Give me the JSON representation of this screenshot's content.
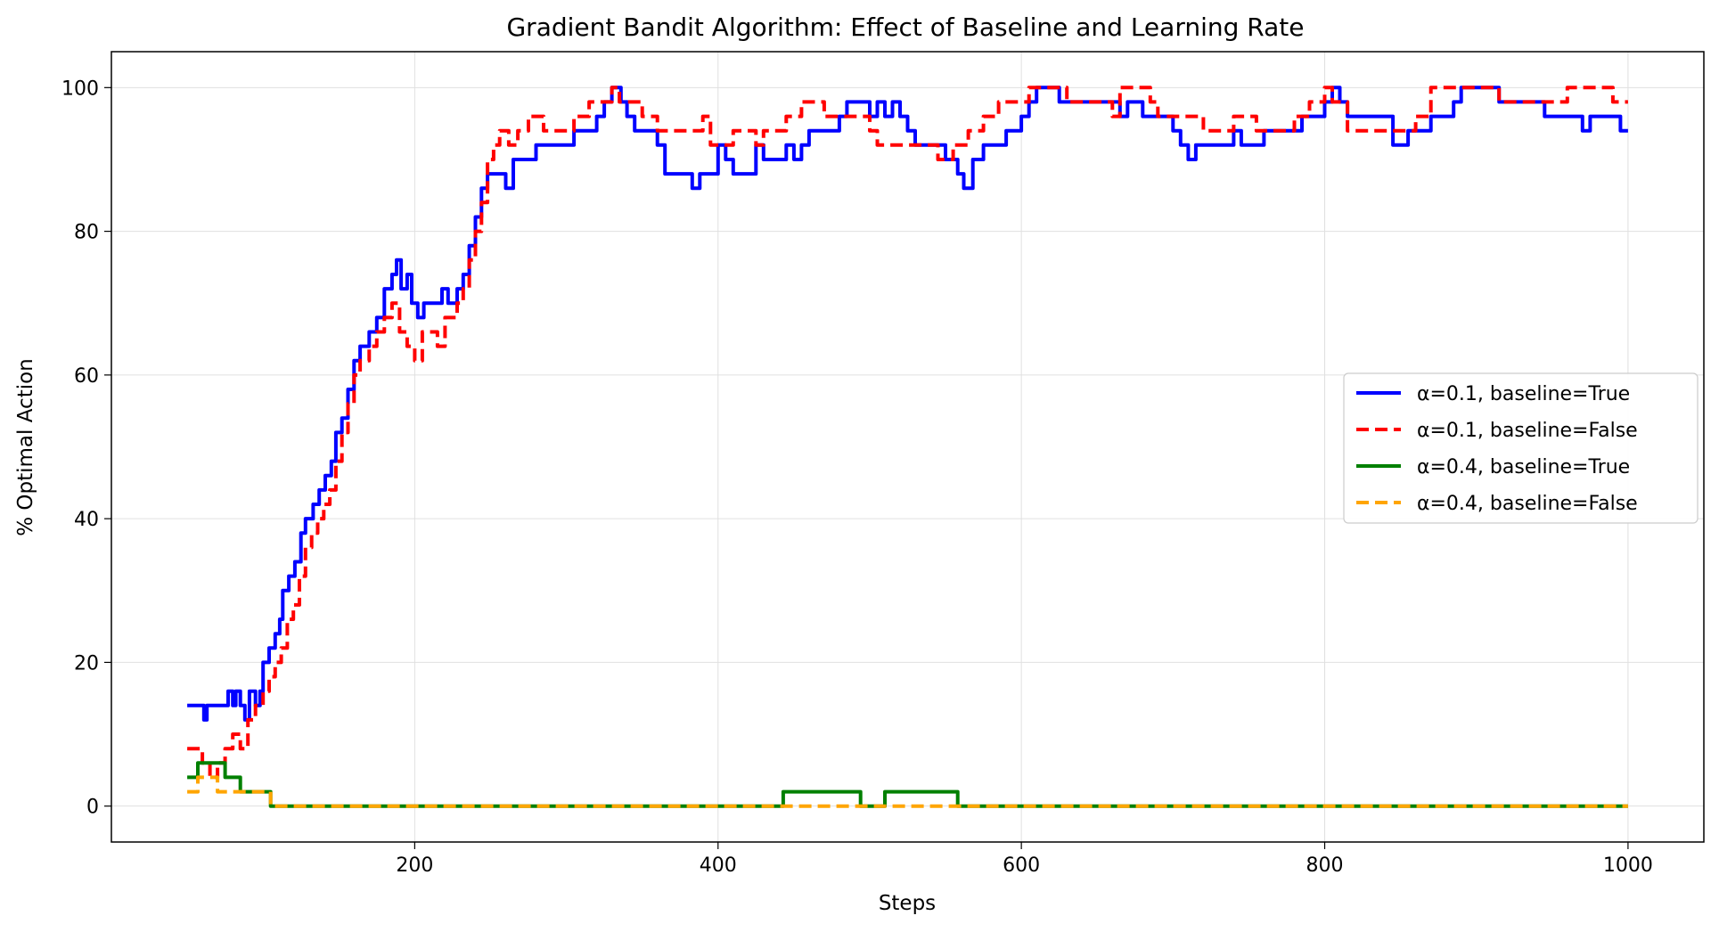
{
  "chart_data": {
    "type": "line",
    "title": "Gradient Bandit Algorithm: Effect of Baseline and Learning Rate",
    "xlabel": "Steps",
    "ylabel": "% Optimal Action",
    "xlim": [
      0,
      1050
    ],
    "ylim": [
      -5,
      105
    ],
    "xticks": [
      200,
      400,
      600,
      800,
      1000
    ],
    "yticks": [
      0,
      20,
      40,
      60,
      80,
      100
    ],
    "grid": true,
    "legend_position": "center-right",
    "series": [
      {
        "name": "α=0.1, baseline=True",
        "color": "#0000ff",
        "dash": "solid",
        "points": [
          [
            50,
            14
          ],
          [
            59,
            14
          ],
          [
            61,
            12
          ],
          [
            63,
            14
          ],
          [
            75,
            14
          ],
          [
            77,
            16
          ],
          [
            80,
            14
          ],
          [
            82,
            16
          ],
          [
            85,
            14
          ],
          [
            88,
            12
          ],
          [
            91,
            16
          ],
          [
            95,
            14
          ],
          [
            98,
            16
          ],
          [
            100,
            20
          ],
          [
            104,
            22
          ],
          [
            108,
            24
          ],
          [
            111,
            26
          ],
          [
            113,
            30
          ],
          [
            117,
            32
          ],
          [
            121,
            34
          ],
          [
            125,
            38
          ],
          [
            128,
            40
          ],
          [
            133,
            42
          ],
          [
            137,
            44
          ],
          [
            141,
            46
          ],
          [
            145,
            48
          ],
          [
            148,
            52
          ],
          [
            152,
            54
          ],
          [
            156,
            58
          ],
          [
            160,
            62
          ],
          [
            164,
            64
          ],
          [
            170,
            66
          ],
          [
            175,
            68
          ],
          [
            180,
            72
          ],
          [
            185,
            74
          ],
          [
            188,
            76
          ],
          [
            191,
            72
          ],
          [
            195,
            74
          ],
          [
            198,
            70
          ],
          [
            202,
            68
          ],
          [
            206,
            70
          ],
          [
            215,
            70
          ],
          [
            218,
            72
          ],
          [
            222,
            70
          ],
          [
            228,
            72
          ],
          [
            232,
            74
          ],
          [
            236,
            78
          ],
          [
            240,
            82
          ],
          [
            244,
            86
          ],
          [
            248,
            88
          ],
          [
            258,
            88
          ],
          [
            260,
            86
          ],
          [
            265,
            90
          ],
          [
            275,
            90
          ],
          [
            280,
            92
          ],
          [
            300,
            92
          ],
          [
            305,
            94
          ],
          [
            320,
            96
          ],
          [
            325,
            98
          ],
          [
            330,
            100
          ],
          [
            336,
            98
          ],
          [
            340,
            96
          ],
          [
            345,
            94
          ],
          [
            360,
            92
          ],
          [
            365,
            88
          ],
          [
            380,
            88
          ],
          [
            383,
            86
          ],
          [
            388,
            88
          ],
          [
            395,
            88
          ],
          [
            400,
            92
          ],
          [
            405,
            90
          ],
          [
            410,
            88
          ],
          [
            425,
            92
          ],
          [
            430,
            90
          ],
          [
            445,
            92
          ],
          [
            450,
            90
          ],
          [
            455,
            92
          ],
          [
            460,
            94
          ],
          [
            475,
            94
          ],
          [
            480,
            96
          ],
          [
            485,
            98
          ],
          [
            500,
            96
          ],
          [
            505,
            98
          ],
          [
            510,
            96
          ],
          [
            515,
            98
          ],
          [
            520,
            96
          ],
          [
            525,
            94
          ],
          [
            530,
            92
          ],
          [
            545,
            92
          ],
          [
            550,
            90
          ],
          [
            558,
            88
          ],
          [
            562,
            86
          ],
          [
            568,
            90
          ],
          [
            575,
            92
          ],
          [
            590,
            94
          ],
          [
            600,
            96
          ],
          [
            605,
            98
          ],
          [
            610,
            100
          ],
          [
            625,
            98
          ],
          [
            660,
            98
          ],
          [
            665,
            96
          ],
          [
            670,
            98
          ],
          [
            680,
            96
          ],
          [
            700,
            94
          ],
          [
            705,
            92
          ],
          [
            710,
            90
          ],
          [
            715,
            92
          ],
          [
            730,
            92
          ],
          [
            740,
            94
          ],
          [
            745,
            92
          ],
          [
            760,
            94
          ],
          [
            780,
            94
          ],
          [
            785,
            96
          ],
          [
            800,
            98
          ],
          [
            805,
            100
          ],
          [
            810,
            98
          ],
          [
            815,
            96
          ],
          [
            830,
            96
          ],
          [
            845,
            92
          ],
          [
            855,
            94
          ],
          [
            870,
            96
          ],
          [
            885,
            98
          ],
          [
            890,
            100
          ],
          [
            910,
            100
          ],
          [
            915,
            98
          ],
          [
            935,
            98
          ],
          [
            945,
            96
          ],
          [
            965,
            96
          ],
          [
            970,
            94
          ],
          [
            975,
            96
          ],
          [
            995,
            94
          ],
          [
            1000,
            94
          ]
        ]
      },
      {
        "name": "α=0.1, baseline=False",
        "color": "#ff0000",
        "dash": "14 7",
        "points": [
          [
            50,
            8
          ],
          [
            58,
            8
          ],
          [
            60,
            6
          ],
          [
            65,
            4
          ],
          [
            70,
            6
          ],
          [
            75,
            8
          ],
          [
            80,
            10
          ],
          [
            85,
            8
          ],
          [
            90,
            12
          ],
          [
            95,
            14
          ],
          [
            100,
            16
          ],
          [
            104,
            18
          ],
          [
            108,
            20
          ],
          [
            112,
            22
          ],
          [
            116,
            26
          ],
          [
            120,
            28
          ],
          [
            124,
            32
          ],
          [
            128,
            36
          ],
          [
            132,
            38
          ],
          [
            136,
            40
          ],
          [
            140,
            42
          ],
          [
            144,
            44
          ],
          [
            148,
            48
          ],
          [
            152,
            52
          ],
          [
            156,
            56
          ],
          [
            160,
            60
          ],
          [
            164,
            62
          ],
          [
            170,
            64
          ],
          [
            175,
            66
          ],
          [
            180,
            68
          ],
          [
            185,
            70
          ],
          [
            190,
            66
          ],
          [
            195,
            64
          ],
          [
            200,
            62
          ],
          [
            205,
            66
          ],
          [
            210,
            66
          ],
          [
            215,
            64
          ],
          [
            220,
            68
          ],
          [
            228,
            70
          ],
          [
            232,
            72
          ],
          [
            236,
            76
          ],
          [
            240,
            80
          ],
          [
            244,
            84
          ],
          [
            248,
            90
          ],
          [
            252,
            92
          ],
          [
            256,
            94
          ],
          [
            262,
            92
          ],
          [
            268,
            94
          ],
          [
            275,
            96
          ],
          [
            280,
            96
          ],
          [
            285,
            94
          ],
          [
            300,
            94
          ],
          [
            305,
            96
          ],
          [
            315,
            98
          ],
          [
            325,
            98
          ],
          [
            330,
            100
          ],
          [
            335,
            98
          ],
          [
            345,
            98
          ],
          [
            350,
            96
          ],
          [
            360,
            94
          ],
          [
            385,
            94
          ],
          [
            390,
            96
          ],
          [
            395,
            92
          ],
          [
            405,
            92
          ],
          [
            410,
            94
          ],
          [
            420,
            94
          ],
          [
            425,
            92
          ],
          [
            430,
            94
          ],
          [
            445,
            96
          ],
          [
            455,
            98
          ],
          [
            470,
            96
          ],
          [
            490,
            96
          ],
          [
            500,
            94
          ],
          [
            505,
            92
          ],
          [
            525,
            92
          ],
          [
            545,
            90
          ],
          [
            555,
            92
          ],
          [
            565,
            94
          ],
          [
            575,
            96
          ],
          [
            585,
            98
          ],
          [
            595,
            98
          ],
          [
            605,
            100
          ],
          [
            625,
            100
          ],
          [
            630,
            98
          ],
          [
            650,
            98
          ],
          [
            660,
            96
          ],
          [
            665,
            100
          ],
          [
            685,
            98
          ],
          [
            690,
            96
          ],
          [
            720,
            94
          ],
          [
            740,
            96
          ],
          [
            755,
            94
          ],
          [
            770,
            94
          ],
          [
            780,
            96
          ],
          [
            790,
            98
          ],
          [
            800,
            100
          ],
          [
            805,
            98
          ],
          [
            815,
            94
          ],
          [
            840,
            94
          ],
          [
            860,
            96
          ],
          [
            870,
            100
          ],
          [
            910,
            100
          ],
          [
            915,
            98
          ],
          [
            955,
            98
          ],
          [
            960,
            100
          ],
          [
            985,
            100
          ],
          [
            990,
            98
          ],
          [
            1000,
            98
          ]
        ]
      },
      {
        "name": "α=0.4, baseline=True",
        "color": "#008000",
        "dash": "solid",
        "points": [
          [
            50,
            4
          ],
          [
            55,
            4
          ],
          [
            57,
            6
          ],
          [
            73,
            6
          ],
          [
            75,
            4
          ],
          [
            83,
            4
          ],
          [
            85,
            2
          ],
          [
            103,
            2
          ],
          [
            105,
            0
          ],
          [
            441,
            0
          ],
          [
            443,
            2
          ],
          [
            492,
            2
          ],
          [
            494,
            0
          ],
          [
            508,
            0
          ],
          [
            510,
            2
          ],
          [
            556,
            2
          ],
          [
            558,
            0
          ],
          [
            1000,
            0
          ]
        ]
      },
      {
        "name": "α=0.4, baseline=False",
        "color": "#ffa500",
        "dash": "14 7",
        "points": [
          [
            50,
            2
          ],
          [
            55,
            2
          ],
          [
            57,
            4
          ],
          [
            68,
            4
          ],
          [
            70,
            2
          ],
          [
            103,
            2
          ],
          [
            105,
            0
          ],
          [
            1000,
            0
          ]
        ]
      }
    ]
  }
}
